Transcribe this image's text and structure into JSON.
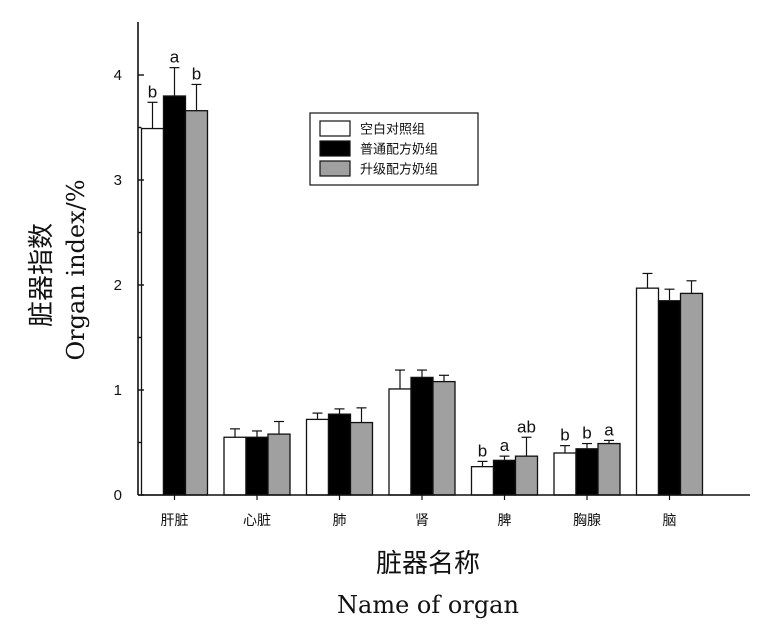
{
  "chart_data": {
    "type": "bar",
    "categories": [
      "肝脏",
      "心脏",
      "肺",
      "肾",
      "脾",
      "胸腺",
      "脑"
    ],
    "series": [
      {
        "name": "空白对照组",
        "color": "#ffffff",
        "values": [
          3.49,
          0.55,
          0.72,
          1.01,
          0.27,
          0.4,
          1.97
        ],
        "errors": [
          0.25,
          0.08,
          0.06,
          0.18,
          0.05,
          0.07,
          0.14
        ],
        "labels": [
          "b",
          "",
          "",
          "",
          "b",
          "b",
          ""
        ]
      },
      {
        "name": "普通配方奶组",
        "color": "#000000",
        "values": [
          3.8,
          0.55,
          0.77,
          1.12,
          0.33,
          0.44,
          1.85
        ],
        "errors": [
          0.27,
          0.06,
          0.05,
          0.07,
          0.04,
          0.05,
          0.11
        ],
        "labels": [
          "a",
          "",
          "",
          "",
          "a",
          "b",
          ""
        ]
      },
      {
        "name": "升级配方奶组",
        "color": "#a0a0a0",
        "values": [
          3.66,
          0.58,
          0.69,
          1.08,
          0.37,
          0.49,
          1.92
        ],
        "errors": [
          0.25,
          0.12,
          0.14,
          0.06,
          0.18,
          0.03,
          0.12
        ],
        "labels": [
          "b",
          "",
          "",
          "",
          "ab",
          "a",
          ""
        ]
      }
    ],
    "y_ticks": [
      0,
      1,
      2,
      3,
      4
    ],
    "ylim": [
      0,
      4.4
    ],
    "ylabel_cn": "脏器指数",
    "ylabel_en": "Organ index/%",
    "xlabel_cn": "脏器名称",
    "xlabel_en": "Name of organ",
    "legend_position": "upper-center",
    "grid": false
  }
}
